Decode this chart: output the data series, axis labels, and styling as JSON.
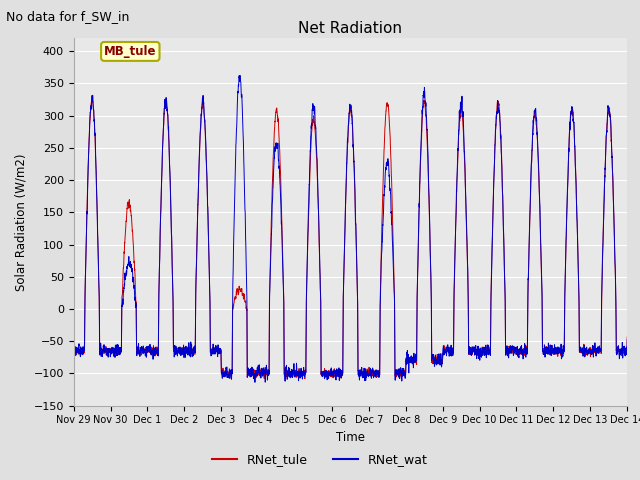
{
  "title": "Net Radiation",
  "suptitle": "No data for f_SW_in",
  "xlabel": "Time",
  "ylabel": "Solar Radiation (W/m2)",
  "ylim": [
    -150,
    420
  ],
  "yticks": [
    -150,
    -100,
    -50,
    0,
    50,
    100,
    150,
    200,
    250,
    300,
    350,
    400
  ],
  "legend_label1": "RNet_tule",
  "legend_label2": "RNet_wat",
  "legend_box_label": "MB_tule",
  "color1": "#cc0000",
  "color2": "#0000cc",
  "fig_bg_color": "#e0e0e0",
  "plot_bg_color": "#e8e8e8",
  "tick_labels": [
    "Nov 29",
    "Nov 30",
    "Dec 1",
    "Dec 2",
    "Dec 3",
    "Dec 4",
    "Dec 5",
    "Dec 6",
    "Dec 7",
    "Dec 8",
    "Dec 9",
    "Dec 10",
    "Dec 11",
    "Dec 12",
    "Dec 13",
    "Dec 14"
  ],
  "num_days": 15,
  "points_per_day": 288
}
